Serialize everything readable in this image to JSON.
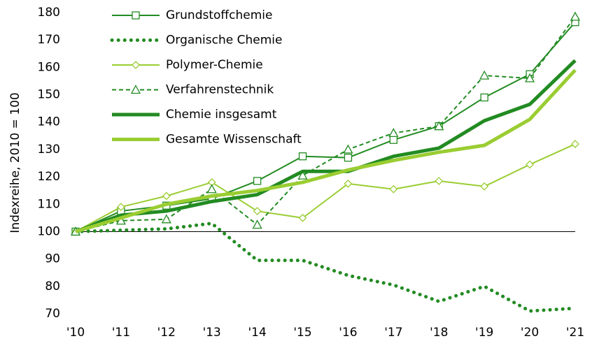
{
  "chart_data": {
    "type": "line",
    "y_axis_label": "Indexreihe, 2010 = 100",
    "categories": [
      "'10",
      "'11",
      "'12",
      "'13",
      "'14",
      "'15",
      "'16",
      "'17",
      "'18",
      "'19",
      "'20",
      "'21"
    ],
    "ylim": [
      70,
      180
    ],
    "yticks": [
      70,
      80,
      90,
      100,
      110,
      120,
      130,
      140,
      150,
      160,
      170,
      180
    ],
    "baseline": 100,
    "legend": "top-left",
    "series": [
      {
        "name": "Grundstoffchemie",
        "color": "#228b22",
        "line_style": "solid",
        "line_weight": "thin",
        "marker": "square",
        "values": [
          100,
          107.5,
          109.5,
          112,
          118.5,
          127.5,
          127,
          133.5,
          138.5,
          149,
          157.5,
          176.5
        ]
      },
      {
        "name": "Organische Chemie",
        "color": "#228b22",
        "line_style": "dotted",
        "line_weight": "thick",
        "marker": "none",
        "values": [
          100,
          100.5,
          101,
          103,
          89.5,
          89.5,
          84,
          80.5,
          74.5,
          80,
          71,
          72
        ]
      },
      {
        "name": "Polymer-Chemie",
        "color": "#9acd32",
        "line_style": "solid",
        "line_weight": "thin",
        "marker": "diamond",
        "values": [
          100,
          109,
          113,
          118,
          107.5,
          105,
          117.5,
          115.5,
          118.5,
          116.5,
          124.5,
          132
        ]
      },
      {
        "name": "Verfahrenstechnik",
        "color": "#228b22",
        "line_style": "dashed",
        "line_weight": "thin",
        "marker": "triangle",
        "values": [
          100,
          104,
          104.5,
          115.5,
          102.5,
          120.5,
          130,
          136,
          138.5,
          157,
          156,
          178.5
        ]
      },
      {
        "name": "Chemie insgesamt",
        "color": "#228b22",
        "line_style": "solid",
        "line_weight": "thick",
        "marker": "none",
        "values": [
          100,
          106,
          107.5,
          111,
          113.5,
          122,
          122,
          127.5,
          130.5,
          140.5,
          146.5,
          162.5
        ]
      },
      {
        "name": "Gesamte Wissenschaft",
        "color": "#9acd32",
        "line_style": "solid",
        "line_weight": "thick",
        "marker": "none",
        "values": [
          100,
          105,
          110,
          113,
          115,
          118,
          122.5,
          126,
          129,
          131.5,
          141,
          159
        ]
      }
    ]
  }
}
